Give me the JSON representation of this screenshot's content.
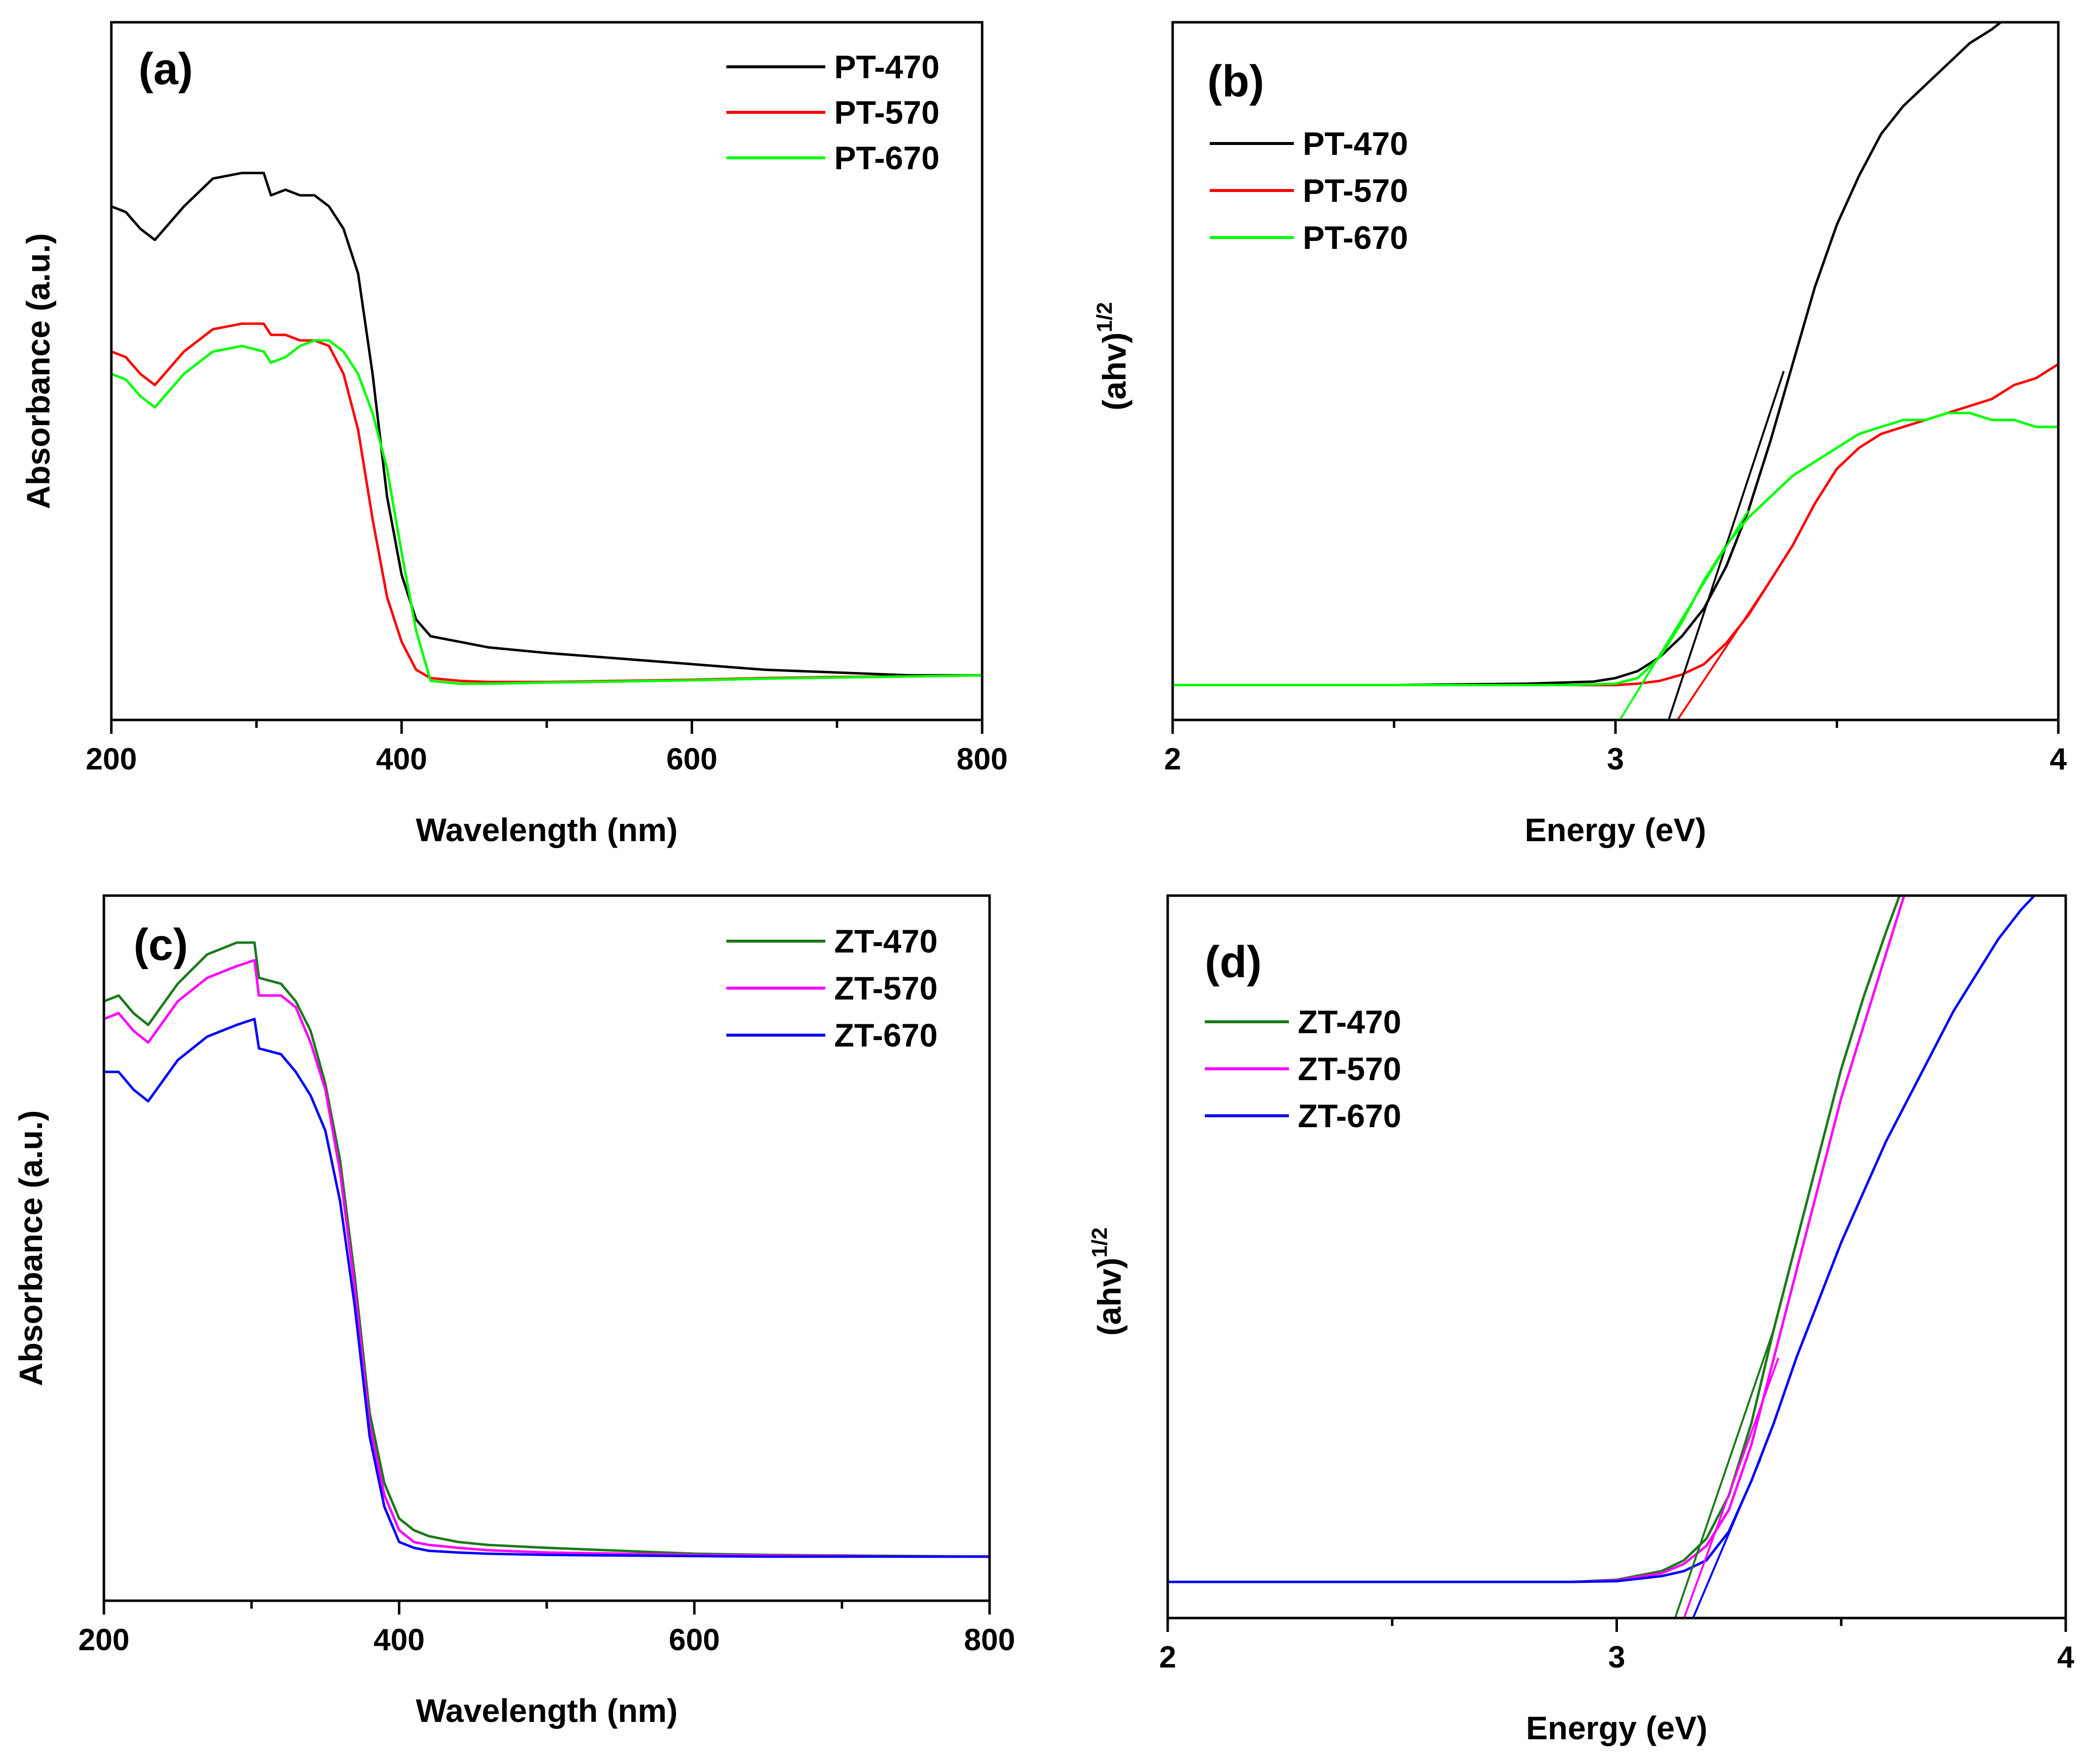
{
  "chart_data": [
    {
      "id": "a",
      "type": "line",
      "panel_label": "(a)",
      "xlabel": "Wavelength (nm)",
      "ylabel": "Absorbance (a.u.)",
      "xlim": [
        200,
        800
      ],
      "ylim": [
        0,
        1.25
      ],
      "xticks": [
        200,
        400,
        600,
        800
      ],
      "xtick_labels": [
        "200",
        "400",
        "600",
        "800"
      ],
      "show_ytick_labels": false,
      "legend_position": "top-right",
      "series": [
        {
          "name": "PT-470",
          "color": "#000000",
          "x": [
            200,
            210,
            220,
            230,
            250,
            270,
            290,
            305,
            310,
            320,
            330,
            340,
            350,
            360,
            370,
            380,
            390,
            400,
            410,
            420,
            440,
            460,
            500,
            550,
            600,
            650,
            700,
            750,
            800
          ],
          "y": [
            0.92,
            0.91,
            0.88,
            0.86,
            0.92,
            0.97,
            0.98,
            0.98,
            0.94,
            0.95,
            0.94,
            0.94,
            0.92,
            0.88,
            0.8,
            0.62,
            0.4,
            0.26,
            0.18,
            0.15,
            0.14,
            0.13,
            0.12,
            0.11,
            0.1,
            0.09,
            0.085,
            0.08,
            0.08
          ]
        },
        {
          "name": "PT-570",
          "color": "#ff0000",
          "x": [
            200,
            210,
            220,
            230,
            250,
            270,
            290,
            305,
            310,
            320,
            330,
            340,
            350,
            360,
            370,
            380,
            390,
            400,
            410,
            420,
            440,
            460,
            500,
            550,
            600,
            650,
            700,
            750,
            800
          ],
          "y": [
            0.66,
            0.65,
            0.62,
            0.6,
            0.66,
            0.7,
            0.71,
            0.71,
            0.69,
            0.69,
            0.68,
            0.68,
            0.67,
            0.62,
            0.52,
            0.36,
            0.22,
            0.14,
            0.09,
            0.075,
            0.07,
            0.068,
            0.068,
            0.07,
            0.072,
            0.075,
            0.077,
            0.078,
            0.08
          ]
        },
        {
          "name": "PT-670",
          "color": "#00ff00",
          "x": [
            200,
            210,
            220,
            230,
            250,
            270,
            290,
            305,
            310,
            320,
            330,
            340,
            350,
            360,
            370,
            380,
            390,
            400,
            410,
            420,
            440,
            460,
            500,
            550,
            600,
            650,
            700,
            750,
            800
          ],
          "y": [
            0.62,
            0.61,
            0.58,
            0.56,
            0.62,
            0.66,
            0.67,
            0.66,
            0.64,
            0.65,
            0.67,
            0.68,
            0.68,
            0.66,
            0.62,
            0.55,
            0.45,
            0.3,
            0.16,
            0.07,
            0.065,
            0.065,
            0.067,
            0.069,
            0.071,
            0.074,
            0.076,
            0.078,
            0.08
          ]
        }
      ]
    },
    {
      "id": "b",
      "type": "line",
      "panel_label": "(b)",
      "xlabel": "Energy (eV)",
      "ylabel_main": "(ahv)",
      "ylabel_sup": "1/2",
      "xlim": [
        2,
        4
      ],
      "ylim": [
        0,
        1.0
      ],
      "xticks": [
        2,
        3,
        4
      ],
      "xtick_labels": [
        "2",
        "3",
        "4"
      ],
      "show_ytick_labels": false,
      "legend_position": "top-left",
      "series": [
        {
          "name": "PT-470",
          "color": "#000000",
          "x": [
            2.0,
            2.5,
            2.8,
            2.95,
            3.0,
            3.05,
            3.1,
            3.15,
            3.2,
            3.25,
            3.3,
            3.35,
            3.4,
            3.45,
            3.5,
            3.55,
            3.6,
            3.65,
            3.7,
            3.75,
            3.8,
            3.85,
            3.87
          ],
          "y": [
            0.05,
            0.05,
            0.052,
            0.055,
            0.06,
            0.07,
            0.09,
            0.12,
            0.16,
            0.22,
            0.3,
            0.4,
            0.51,
            0.62,
            0.71,
            0.78,
            0.84,
            0.88,
            0.91,
            0.94,
            0.97,
            0.99,
            1.0
          ]
        },
        {
          "name": "PT-570",
          "color": "#ff0000",
          "x": [
            2.0,
            2.5,
            2.9,
            3.0,
            3.05,
            3.1,
            3.15,
            3.2,
            3.25,
            3.3,
            3.35,
            3.4,
            3.45,
            3.5,
            3.55,
            3.6,
            3.65,
            3.7,
            3.75,
            3.8,
            3.85,
            3.9,
            3.95,
            4.0
          ],
          "y": [
            0.05,
            0.05,
            0.05,
            0.05,
            0.052,
            0.056,
            0.065,
            0.08,
            0.11,
            0.15,
            0.2,
            0.25,
            0.31,
            0.36,
            0.39,
            0.41,
            0.42,
            0.43,
            0.44,
            0.45,
            0.46,
            0.48,
            0.49,
            0.51
          ]
        },
        {
          "name": "PT-670",
          "color": "#00ff00",
          "x": [
            2.0,
            2.5,
            2.9,
            3.0,
            3.05,
            3.1,
            3.15,
            3.2,
            3.25,
            3.3,
            3.35,
            3.4,
            3.45,
            3.5,
            3.55,
            3.6,
            3.65,
            3.7,
            3.75,
            3.8,
            3.85,
            3.9,
            3.95,
            4.0
          ],
          "y": [
            0.05,
            0.05,
            0.05,
            0.052,
            0.06,
            0.09,
            0.14,
            0.2,
            0.25,
            0.29,
            0.32,
            0.35,
            0.37,
            0.39,
            0.41,
            0.42,
            0.43,
            0.43,
            0.44,
            0.44,
            0.43,
            0.43,
            0.42,
            0.42
          ]
        }
      ],
      "fit_lines": [
        {
          "color": "#000000",
          "x": [
            3.12,
            3.38
          ],
          "y": [
            0.0,
            0.5
          ]
        },
        {
          "color": "#ff0000",
          "x": [
            3.14,
            3.35
          ],
          "y": [
            0.0,
            0.2
          ]
        },
        {
          "color": "#00ff00",
          "x": [
            3.01,
            3.3
          ],
          "y": [
            0.0,
            0.3
          ]
        }
      ]
    },
    {
      "id": "c",
      "type": "line",
      "panel_label": "(c)",
      "xlabel": "Wavelength (nm)",
      "ylabel": "Absorbance (a.u.)",
      "xlim": [
        200,
        800
      ],
      "ylim": [
        0,
        1.2
      ],
      "xticks": [
        200,
        400,
        600,
        800
      ],
      "xtick_labels": [
        "200",
        "400",
        "600",
        "800"
      ],
      "show_ytick_labels": false,
      "legend_position": "top-right",
      "series": [
        {
          "name": "ZT-470",
          "color": "#1a7a1a",
          "x": [
            200,
            210,
            220,
            230,
            250,
            270,
            290,
            302,
            305,
            320,
            330,
            340,
            350,
            360,
            370,
            380,
            390,
            400,
            410,
            420,
            440,
            460,
            500,
            550,
            600,
            650,
            700,
            750,
            800
          ],
          "y": [
            1.02,
            1.03,
            1.0,
            0.98,
            1.05,
            1.1,
            1.12,
            1.12,
            1.06,
            1.05,
            1.02,
            0.97,
            0.88,
            0.75,
            0.55,
            0.32,
            0.2,
            0.14,
            0.12,
            0.11,
            0.1,
            0.095,
            0.09,
            0.085,
            0.08,
            0.078,
            0.077,
            0.076,
            0.075
          ]
        },
        {
          "name": "ZT-570",
          "color": "#ff00ff",
          "x": [
            200,
            210,
            220,
            230,
            250,
            270,
            290,
            302,
            305,
            320,
            330,
            340,
            350,
            360,
            370,
            380,
            390,
            400,
            410,
            420,
            440,
            460,
            500,
            550,
            600,
            650,
            700,
            750,
            800
          ],
          "y": [
            0.99,
            1.0,
            0.97,
            0.95,
            1.02,
            1.06,
            1.08,
            1.09,
            1.03,
            1.03,
            1.01,
            0.95,
            0.87,
            0.73,
            0.53,
            0.3,
            0.18,
            0.12,
            0.1,
            0.095,
            0.09,
            0.086,
            0.082,
            0.08,
            0.078,
            0.077,
            0.076,
            0.075,
            0.075
          ]
        },
        {
          "name": "ZT-670",
          "color": "#0000ff",
          "x": [
            200,
            210,
            220,
            230,
            250,
            270,
            290,
            302,
            305,
            320,
            330,
            340,
            350,
            360,
            370,
            380,
            390,
            400,
            410,
            420,
            440,
            460,
            500,
            550,
            600,
            650,
            700,
            750,
            800
          ],
          "y": [
            0.9,
            0.9,
            0.87,
            0.85,
            0.92,
            0.96,
            0.98,
            0.99,
            0.94,
            0.93,
            0.9,
            0.86,
            0.8,
            0.68,
            0.5,
            0.28,
            0.16,
            0.1,
            0.09,
            0.085,
            0.082,
            0.08,
            0.078,
            0.077,
            0.076,
            0.075,
            0.075,
            0.075,
            0.075
          ]
        }
      ]
    },
    {
      "id": "d",
      "type": "line",
      "panel_label": "(d)",
      "xlabel": "Energy (eV)",
      "ylabel_main": "(ahv)",
      "ylabel_sup": "1/2",
      "xlim": [
        2,
        4
      ],
      "ylim": [
        0,
        1.0
      ],
      "xticks": [
        2,
        3,
        4
      ],
      "xtick_labels": [
        "2",
        "3",
        "4"
      ],
      "show_ytick_labels": false,
      "legend_position": "top-left",
      "series": [
        {
          "name": "ZT-470",
          "color": "#1a7a1a",
          "x": [
            2.0,
            2.5,
            2.9,
            3.0,
            3.1,
            3.15,
            3.2,
            3.25,
            3.3,
            3.35,
            3.4,
            3.45,
            3.5,
            3.55,
            3.6,
            3.63
          ],
          "y": [
            0.05,
            0.05,
            0.05,
            0.053,
            0.065,
            0.08,
            0.11,
            0.17,
            0.27,
            0.4,
            0.52,
            0.64,
            0.76,
            0.86,
            0.95,
            1.0
          ]
        },
        {
          "name": "ZT-570",
          "color": "#ff00ff",
          "x": [
            2.0,
            2.5,
            2.9,
            3.0,
            3.1,
            3.15,
            3.2,
            3.25,
            3.3,
            3.35,
            3.4,
            3.45,
            3.5,
            3.55,
            3.6,
            3.64
          ],
          "y": [
            0.05,
            0.05,
            0.05,
            0.052,
            0.062,
            0.075,
            0.1,
            0.15,
            0.24,
            0.36,
            0.48,
            0.6,
            0.72,
            0.82,
            0.92,
            1.0
          ]
        },
        {
          "name": "ZT-670",
          "color": "#0000ff",
          "x": [
            2.0,
            2.5,
            2.9,
            3.0,
            3.1,
            3.15,
            3.2,
            3.25,
            3.3,
            3.35,
            3.4,
            3.45,
            3.5,
            3.55,
            3.6,
            3.65,
            3.7,
            3.75,
            3.8,
            3.85,
            3.9,
            3.93
          ],
          "y": [
            0.05,
            0.05,
            0.05,
            0.051,
            0.058,
            0.065,
            0.08,
            0.12,
            0.19,
            0.27,
            0.36,
            0.44,
            0.52,
            0.59,
            0.66,
            0.72,
            0.78,
            0.84,
            0.89,
            0.94,
            0.98,
            1.0
          ]
        }
      ],
      "fit_lines": [
        {
          "color": "#1a7a1a",
          "x": [
            3.13,
            3.35
          ],
          "y": [
            0.0,
            0.4
          ]
        },
        {
          "color": "#ff00ff",
          "x": [
            3.15,
            3.36
          ],
          "y": [
            0.0,
            0.36
          ]
        },
        {
          "color": "#0000ff",
          "x": [
            3.17,
            3.32
          ],
          "y": [
            0.0,
            0.22
          ]
        }
      ]
    }
  ]
}
